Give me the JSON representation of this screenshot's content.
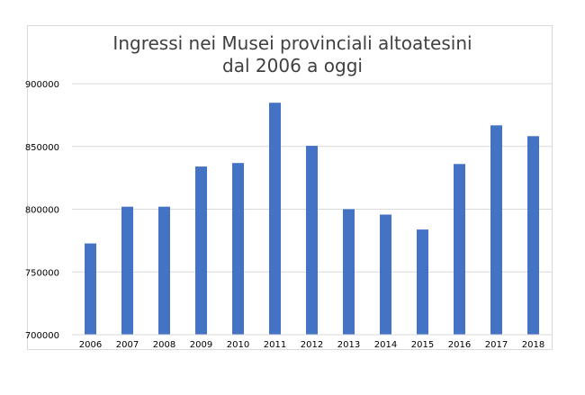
{
  "chart_data": {
    "type": "bar",
    "title_lines": [
      "Ingressi nei Musei provinciali altoatesini",
      "dal 2006 a oggi"
    ],
    "categories": [
      "2006",
      "2007",
      "2008",
      "2009",
      "2010",
      "2011",
      "2012",
      "2013",
      "2014",
      "2015",
      "2016",
      "2017",
      "2018"
    ],
    "values": [
      772700,
      802000,
      802000,
      834000,
      836800,
      884800,
      850500,
      800000,
      795700,
      783800,
      836000,
      866800,
      858200
    ],
    "ylim": [
      700000,
      900000
    ],
    "yticks": [
      "700000",
      "750000",
      "800000",
      "850000",
      "900000"
    ],
    "xlabel": "",
    "ylabel": "",
    "grid": true,
    "legend": "none",
    "bar_color": "#4472c4",
    "grid_color": "#d9d9d9"
  }
}
